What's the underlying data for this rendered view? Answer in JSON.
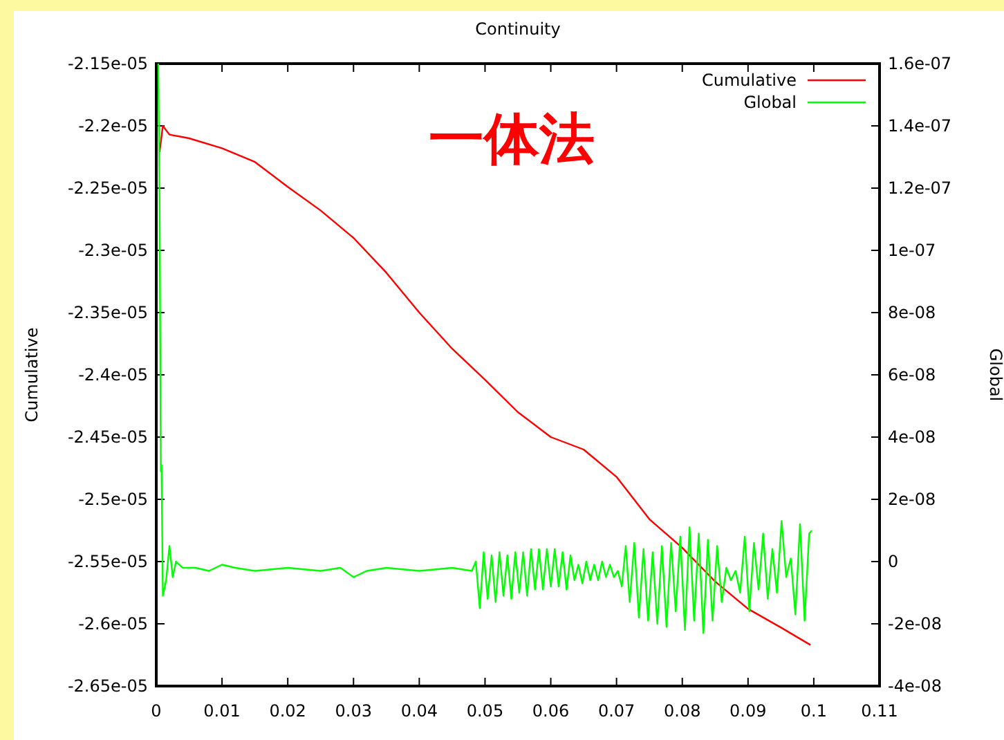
{
  "chart_data": {
    "type": "line",
    "title": "Continuity",
    "ylabel": "Cumulative",
    "y2label": "Global",
    "annotations": [
      "一体法"
    ],
    "legend": "top right",
    "grid": false,
    "marker": "none",
    "line_style": "solid",
    "xlim": [
      0,
      0.11
    ],
    "xticks": [
      0,
      0.01,
      0.02,
      0.03,
      0.04,
      0.05,
      0.06,
      0.07,
      0.08,
      0.09,
      0.1,
      0.11
    ],
    "ylim": [
      -2.65e-05,
      -2.15e-05
    ],
    "yticks": [
      {
        "value": -2.65e-05,
        "label": "-2.65e-05"
      },
      {
        "value": -2.6e-05,
        "label": "-2.6e-05"
      },
      {
        "value": -2.55e-05,
        "label": "-2.55e-05"
      },
      {
        "value": -2.5e-05,
        "label": "-2.5e-05"
      },
      {
        "value": -2.45e-05,
        "label": "-2.45e-05"
      },
      {
        "value": -2.4e-05,
        "label": "-2.4e-05"
      },
      {
        "value": -2.35e-05,
        "label": "-2.35e-05"
      },
      {
        "value": -2.3e-05,
        "label": "-2.3e-05"
      },
      {
        "value": -2.25e-05,
        "label": "-2.25e-05"
      },
      {
        "value": -2.2e-05,
        "label": "-2.2e-05"
      },
      {
        "value": -2.15e-05,
        "label": "-2.15e-05"
      }
    ],
    "y2lim": [
      -4e-08,
      1.6e-07
    ],
    "y2ticks": [
      {
        "value": -4e-08,
        "label": "-4e-08"
      },
      {
        "value": -2e-08,
        "label": "-2e-08"
      },
      0,
      {
        "value": 2e-08,
        "label": "2e-08"
      },
      {
        "value": 4e-08,
        "label": "4e-08"
      },
      {
        "value": 6e-08,
        "label": "6e-08"
      },
      {
        "value": 8e-08,
        "label": "8e-08"
      },
      {
        "value": 1e-07,
        "label": "1e-07"
      },
      {
        "value": 1.2e-07,
        "label": "1.2e-07"
      },
      {
        "value": 1.4e-07,
        "label": "1.4e-07"
      },
      {
        "value": 1.6e-07,
        "label": "1.6e-07"
      }
    ],
    "series": [
      {
        "name": "Cumulative",
        "color": "#ff0000",
        "x": [
          0.0005,
          0.001,
          0.002,
          0.005,
          0.01,
          0.015,
          0.02,
          0.025,
          0.03,
          0.035,
          0.04,
          0.045,
          0.05,
          0.055,
          0.06,
          0.065,
          0.07,
          0.075,
          0.08,
          0.085,
          0.09,
          0.095,
          0.0995
        ],
        "values": [
          -2.221e-05,
          -2.2e-05,
          -2.207e-05,
          -2.21e-05,
          -2.218e-05,
          -2.229e-05,
          -2.249e-05,
          -2.268e-05,
          -2.29e-05,
          -2.318e-05,
          -2.35e-05,
          -2.379e-05,
          -2.404e-05,
          -2.43e-05,
          -2.45e-05,
          -2.46e-05,
          -2.482e-05,
          -2.516e-05,
          -2.539e-05,
          -2.566e-05,
          -2.588e-05,
          -2.603e-05,
          -2.617e-05
        ]
      },
      {
        "name": "Global",
        "color": "#00ff00",
        "axis": "y2",
        "x": [
          0.0003,
          0.0005,
          0.0007,
          0.0008,
          0.001,
          0.0015,
          0.002,
          0.0025,
          0.003,
          0.004,
          0.006,
          0.008,
          0.01,
          0.012,
          0.015,
          0.02,
          0.025,
          0.028,
          0.03,
          0.032,
          0.035,
          0.04,
          0.045,
          0.048,
          0.0486,
          0.0492,
          0.0498,
          0.0504,
          0.051,
          0.0516,
          0.0522,
          0.0528,
          0.0534,
          0.054,
          0.0546,
          0.0552,
          0.0558,
          0.0564,
          0.057,
          0.0576,
          0.0582,
          0.0588,
          0.0594,
          0.06,
          0.0606,
          0.0612,
          0.0618,
          0.0624,
          0.063,
          0.0636,
          0.0642,
          0.0648,
          0.0654,
          0.066,
          0.0666,
          0.0672,
          0.0678,
          0.0684,
          0.069,
          0.0696,
          0.0702,
          0.0708,
          0.0714,
          0.072,
          0.0727,
          0.0734,
          0.0741,
          0.0748,
          0.0755,
          0.0762,
          0.0769,
          0.0776,
          0.0783,
          0.079,
          0.0797,
          0.0804,
          0.0811,
          0.0818,
          0.0825,
          0.0832,
          0.0839,
          0.0846,
          0.0853,
          0.086,
          0.0867,
          0.0874,
          0.0881,
          0.0888,
          0.0895,
          0.0902,
          0.0909,
          0.0916,
          0.0923,
          0.093,
          0.0937,
          0.0944,
          0.0951,
          0.0958,
          0.0965,
          0.0972,
          0.0979,
          0.0986,
          0.0993,
          0.0997
        ],
        "values": [
          1.6e-07,
          1.16e-07,
          2.9e-08,
          3.1e-08,
          -1.1e-08,
          -6e-09,
          5e-09,
          -5e-09,
          0,
          -2e-09,
          -2e-09,
          -3e-09,
          -1e-09,
          -2e-09,
          -3e-09,
          -2e-09,
          -3e-09,
          -2e-09,
          -5e-09,
          -3e-09,
          -2e-09,
          -3e-09,
          -2e-09,
          -3e-09,
          0,
          -1.5e-08,
          3e-09,
          -1.2e-08,
          2e-09,
          -1.3e-08,
          3e-09,
          -1.1e-08,
          2e-09,
          -1.2e-08,
          3e-09,
          -1e-08,
          3e-09,
          -1.1e-08,
          4e-09,
          -9e-09,
          4e-09,
          -9e-09,
          4e-09,
          -8e-09,
          4e-09,
          -8e-09,
          3e-09,
          -9e-09,
          2e-09,
          -6e-09,
          -1e-09,
          -7e-09,
          0,
          -6e-09,
          -1e-09,
          -6e-09,
          0,
          -5e-09,
          -1e-09,
          -5e-09,
          -3e-09,
          -8e-09,
          5e-09,
          -1.3e-08,
          6e-09,
          -1.8e-08,
          4e-09,
          -1.9e-08,
          3e-09,
          -2e-08,
          5e-09,
          -2.1e-08,
          6e-09,
          -1.6e-08,
          8e-09,
          -2.2e-08,
          1.1e-08,
          -1.9e-08,
          9e-09,
          -2.3e-08,
          7e-09,
          -1.9e-08,
          5e-09,
          -1.3e-08,
          -2e-09,
          -6e-09,
          -3e-09,
          -1e-08,
          8e-09,
          -1.6e-08,
          6e-09,
          -9e-09,
          9e-09,
          -1.2e-08,
          4e-09,
          -1e-08,
          1.3e-08,
          -5e-09,
          1e-09,
          -1.7e-08,
          1.2e-08,
          -1.9e-08,
          9e-09,
          1e-08
        ]
      }
    ]
  }
}
